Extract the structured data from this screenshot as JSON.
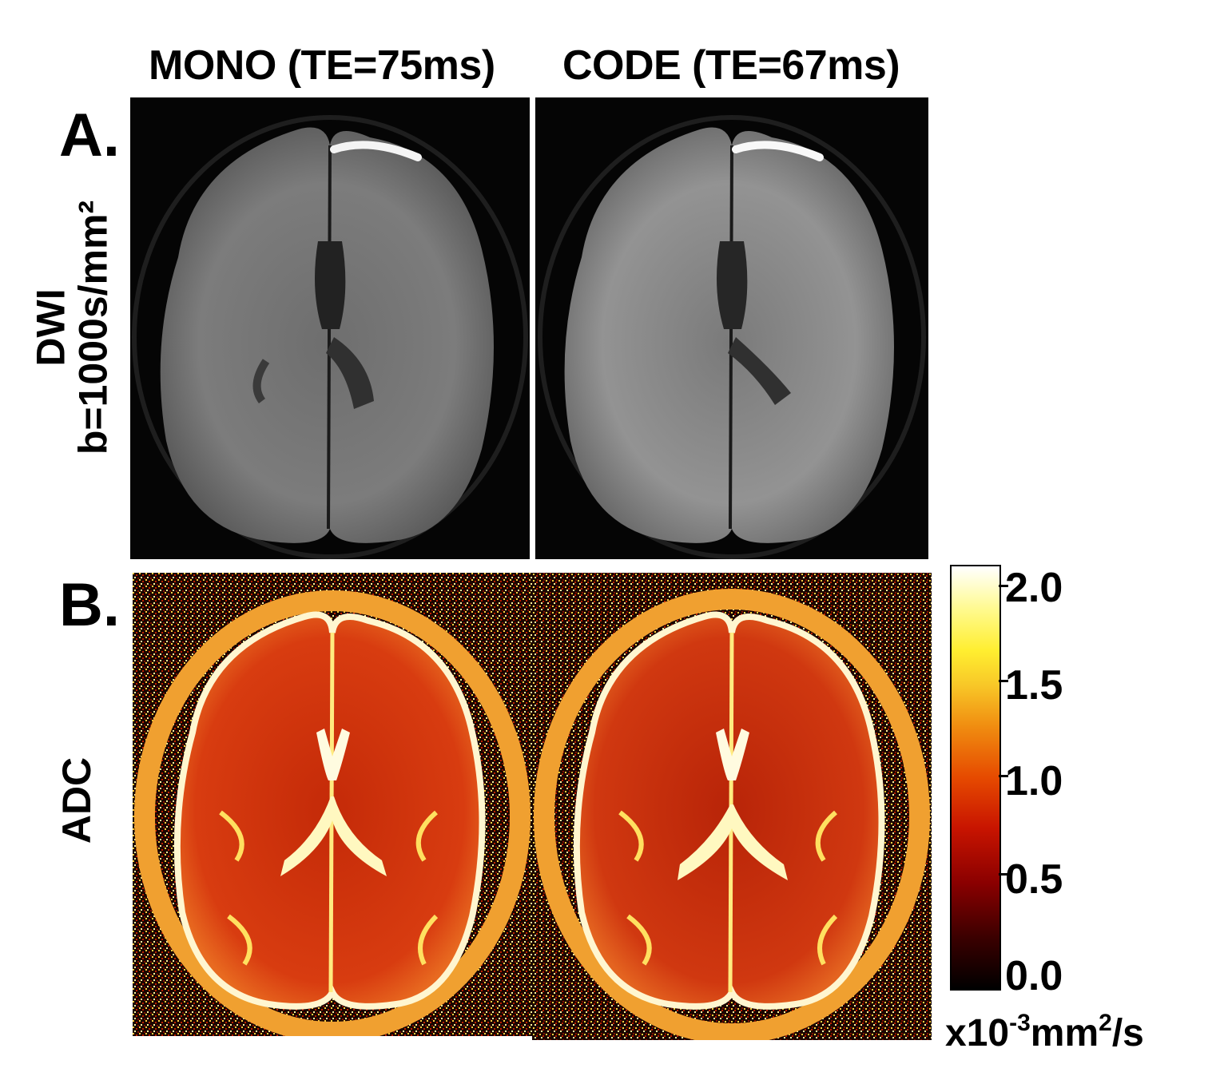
{
  "columns": {
    "left_title": "MONO (TE=75ms)",
    "right_title": "CODE (TE=67ms)"
  },
  "panels": {
    "a_letter": "A.",
    "b_letter": "B."
  },
  "row_labels": {
    "dwi_line1": "DWI",
    "dwi_line2": "b=1000s/mm²",
    "adc": "ADC"
  },
  "colorbar": {
    "ticks": [
      "2.0",
      "1.5",
      "1.0",
      "0.5",
      "0.0"
    ],
    "unit_prefix": "x10",
    "unit_exp": "-3",
    "unit_mid": "mm",
    "unit_exp2": "2",
    "unit_suffix": "/s"
  },
  "colors": {
    "background": "#ffffff",
    "dwi_tissue": "#8a8a8a",
    "adc_tissue": "#d23a10",
    "adc_bright": "#ffe84a"
  }
}
